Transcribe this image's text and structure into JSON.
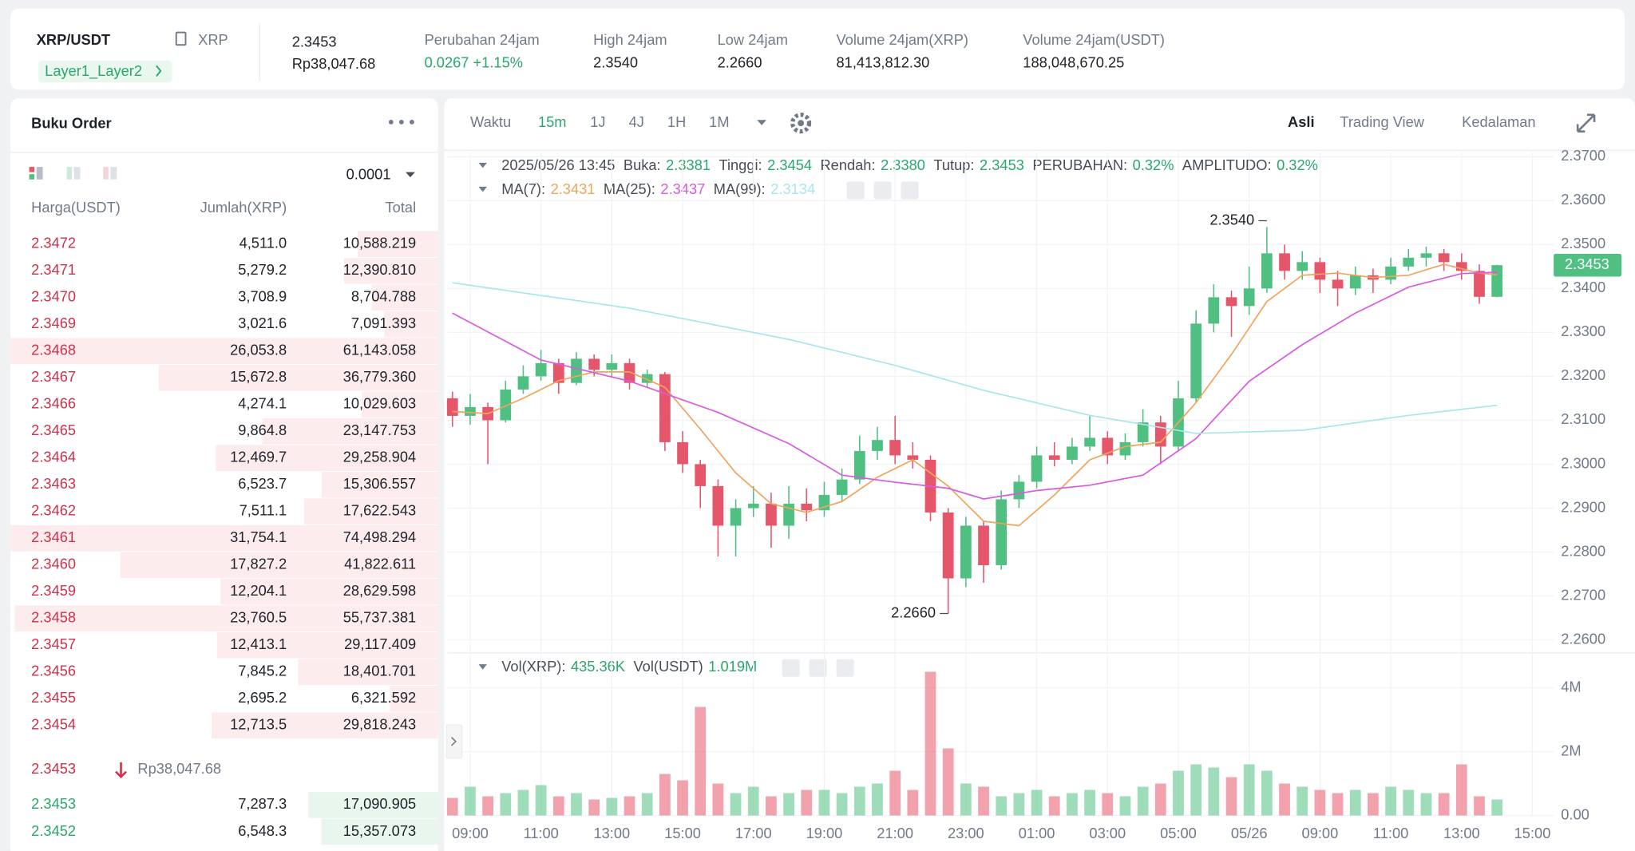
{
  "header": {
    "pair": "XRP/USDT",
    "base": "XRP",
    "tag": "Layer1_Layer2",
    "price": "2.3453",
    "price_idr": "Rp38,047.68",
    "stats": [
      {
        "label": "Perubahan 24jam",
        "value": "0.0267 +1.15%",
        "color": "#2aa76b"
      },
      {
        "label": "High 24jam",
        "value": "2.3540"
      },
      {
        "label": "Low 24jam",
        "value": "2.2660"
      },
      {
        "label": "Volume 24jam(XRP)",
        "value": "81,413,812.30"
      },
      {
        "label": "Volume 24jam(USDT)",
        "value": "188,048,670.25"
      }
    ]
  },
  "order_book": {
    "title": "Buku Order",
    "precision": "0.0001",
    "columns": [
      "Harga(USDT)",
      "Jumlah(XRP)",
      "Total"
    ],
    "asks": [
      [
        "2.3472",
        "4,511.0",
        "10,588.219"
      ],
      [
        "2.3471",
        "5,279.2",
        "12,390.810"
      ],
      [
        "2.3470",
        "3,708.9",
        "8,704.788"
      ],
      [
        "2.3469",
        "3,021.6",
        "7,091.393"
      ],
      [
        "2.3468",
        "26,053.8",
        "61,143.058"
      ],
      [
        "2.3467",
        "15,672.8",
        "36,779.360"
      ],
      [
        "2.3466",
        "4,274.1",
        "10,029.603"
      ],
      [
        "2.3465",
        "9,864.8",
        "23,147.753"
      ],
      [
        "2.3464",
        "12,469.7",
        "29,258.904"
      ],
      [
        "2.3463",
        "6,523.7",
        "15,306.557"
      ],
      [
        "2.3462",
        "7,511.1",
        "17,622.543"
      ],
      [
        "2.3461",
        "31,754.1",
        "74,498.294"
      ],
      [
        "2.3460",
        "17,827.2",
        "41,822.611"
      ],
      [
        "2.3459",
        "12,204.1",
        "28,629.598"
      ],
      [
        "2.3458",
        "23,760.5",
        "55,737.381"
      ],
      [
        "2.3457",
        "12,413.1",
        "29,117.409"
      ],
      [
        "2.3456",
        "7,845.2",
        "18,401.701"
      ],
      [
        "2.3455",
        "2,695.2",
        "6,321.592"
      ],
      [
        "2.3454",
        "12,713.5",
        "29,818.243"
      ]
    ],
    "last_price": "2.3453",
    "last_price_idr": "Rp38,047.68",
    "bids": [
      [
        "2.3453",
        "7,287.3",
        "17,090.905"
      ],
      [
        "2.3452",
        "6,548.3",
        "15,357.073"
      ]
    ]
  },
  "toolbar": {
    "label": "Waktu",
    "intervals": [
      "15m",
      "1J",
      "4J",
      "1H",
      "1M"
    ],
    "active": 0,
    "views": [
      "Asli",
      "Trading View",
      "Kedalaman"
    ],
    "active_view": 0
  },
  "chart_data": {
    "type": "candlestick",
    "date": "2025/05/26 13:45",
    "info": [
      {
        "label": "Buka:",
        "value": "2.3381"
      },
      {
        "label": "Tinggi:",
        "value": "2.3454"
      },
      {
        "label": "Rendah:",
        "value": "2.3380"
      },
      {
        "label": "Tutup:",
        "value": "2.3453"
      },
      {
        "label": "PERUBAHAN:",
        "value": "0.32%"
      },
      {
        "label": "AMPLITUDO:",
        "value": "0.32%"
      }
    ],
    "up_color": "#4fbf82",
    "down_color": "#e5566a",
    "candles": [
      [
        2.315,
        2.3165,
        2.3085,
        2.311
      ],
      [
        2.311,
        2.316,
        2.309,
        2.313
      ],
      [
        2.313,
        2.314,
        2.3,
        2.31
      ],
      [
        2.31,
        2.319,
        2.3095,
        2.317
      ],
      [
        2.317,
        2.3225,
        2.316,
        2.32
      ],
      [
        2.32,
        2.326,
        2.319,
        2.323
      ],
      [
        2.323,
        2.324,
        2.316,
        2.3185
      ],
      [
        2.3185,
        2.3255,
        2.318,
        2.324
      ],
      [
        2.324,
        2.325,
        2.32,
        2.3215
      ],
      [
        2.3215,
        2.325,
        2.32,
        2.323
      ],
      [
        2.323,
        2.324,
        2.317,
        2.3185
      ],
      [
        2.3185,
        2.3215,
        2.3175,
        2.3205
      ],
      [
        2.3205,
        2.321,
        2.303,
        2.305
      ],
      [
        2.305,
        2.3075,
        2.298,
        2.3
      ],
      [
        2.3,
        2.301,
        2.29,
        2.295
      ],
      [
        2.295,
        2.2965,
        2.279,
        2.286
      ],
      [
        2.286,
        2.292,
        2.279,
        2.29
      ],
      [
        2.29,
        2.295,
        2.288,
        2.291
      ],
      [
        2.291,
        2.2935,
        2.281,
        2.286
      ],
      [
        2.286,
        2.295,
        2.283,
        2.291
      ],
      [
        2.291,
        2.2945,
        2.287,
        2.2895
      ],
      [
        2.2895,
        2.296,
        2.288,
        2.293
      ],
      [
        2.293,
        2.299,
        2.2915,
        2.2965
      ],
      [
        2.2965,
        2.3065,
        2.2955,
        2.303
      ],
      [
        2.303,
        2.3085,
        2.301,
        2.3055
      ],
      [
        2.3055,
        2.311,
        2.3,
        2.302
      ],
      [
        2.302,
        2.305,
        2.299,
        2.301
      ],
      [
        2.301,
        2.302,
        2.287,
        2.289
      ],
      [
        2.289,
        2.29,
        2.266,
        2.274
      ],
      [
        2.274,
        2.288,
        2.272,
        2.286
      ],
      [
        2.286,
        2.287,
        2.273,
        2.277
      ],
      [
        2.277,
        2.294,
        2.276,
        2.292
      ],
      [
        2.292,
        2.2975,
        2.29,
        2.296
      ],
      [
        2.296,
        2.304,
        2.2945,
        2.302
      ],
      [
        2.302,
        2.305,
        2.2995,
        2.301
      ],
      [
        2.301,
        2.306,
        2.3,
        2.304
      ],
      [
        2.304,
        2.311,
        2.303,
        2.306
      ],
      [
        2.306,
        2.3075,
        2.3,
        2.302
      ],
      [
        2.302,
        2.307,
        2.301,
        2.305
      ],
      [
        2.305,
        2.3125,
        2.304,
        2.3095
      ],
      [
        2.3095,
        2.311,
        2.3,
        2.304
      ],
      [
        2.304,
        2.319,
        2.303,
        2.315
      ],
      [
        2.315,
        2.335,
        2.314,
        2.332
      ],
      [
        2.332,
        2.341,
        2.33,
        2.338
      ],
      [
        2.338,
        2.3395,
        2.329,
        2.336
      ],
      [
        2.336,
        2.345,
        2.334,
        2.34
      ],
      [
        2.34,
        2.354,
        2.339,
        2.348
      ],
      [
        2.348,
        2.35,
        2.342,
        2.344
      ],
      [
        2.344,
        2.3485,
        2.342,
        2.346
      ],
      [
        2.346,
        2.347,
        2.339,
        2.342
      ],
      [
        2.342,
        2.344,
        2.336,
        2.34
      ],
      [
        2.34,
        2.345,
        2.3385,
        2.343
      ],
      [
        2.343,
        2.3445,
        2.339,
        2.342
      ],
      [
        2.342,
        2.347,
        2.341,
        2.345
      ],
      [
        2.345,
        2.349,
        2.344,
        2.347
      ],
      [
        2.347,
        2.3495,
        2.345,
        2.348
      ],
      [
        2.348,
        2.349,
        2.344,
        2.346
      ],
      [
        2.346,
        2.348,
        2.342,
        2.344
      ],
      [
        2.344,
        2.3455,
        2.3365,
        2.3381
      ],
      [
        2.3381,
        2.3454,
        2.338,
        2.3453
      ]
    ],
    "xlim": [
      -0.29,
      62.2
    ],
    "xticks": [
      {
        "value": 1,
        "label": "09:00"
      },
      {
        "value": 5,
        "label": "11:00"
      },
      {
        "value": 9,
        "label": "13:00"
      },
      {
        "value": 13,
        "label": "15:00"
      },
      {
        "value": 17,
        "label": "17:00"
      },
      {
        "value": 21,
        "label": "19:00"
      },
      {
        "value": 25,
        "label": "21:00"
      },
      {
        "value": 29,
        "label": "23:00"
      },
      {
        "value": 33,
        "label": "01:00"
      },
      {
        "value": 37,
        "label": "03:00"
      },
      {
        "value": 41,
        "label": "05:00"
      },
      {
        "value": 45,
        "label": "05/26"
      },
      {
        "value": 49,
        "label": "09:00"
      },
      {
        "value": 53,
        "label": "11:00"
      },
      {
        "value": 57,
        "label": "13:00"
      },
      {
        "value": 61,
        "label": "15:00"
      }
    ],
    "ylim": [
      2.258,
      2.371
    ],
    "yticks": [
      {
        "value": 2.37,
        "label": "2.3700"
      },
      {
        "value": 2.36,
        "label": "2.3600"
      },
      {
        "value": 2.35,
        "label": "2.3500"
      },
      {
        "value": 2.34,
        "label": "2.3400"
      },
      {
        "value": 2.33,
        "label": "2.3300"
      },
      {
        "value": 2.32,
        "label": "2.3200"
      },
      {
        "value": 2.31,
        "label": "2.3100"
      },
      {
        "value": 2.3,
        "label": "2.3000"
      },
      {
        "value": 2.29,
        "label": "2.2900"
      },
      {
        "value": 2.28,
        "label": "2.2800"
      },
      {
        "value": 2.27,
        "label": "2.2700"
      },
      {
        "value": 2.26,
        "label": "2.2600"
      }
    ],
    "grid": true,
    "series": [
      {
        "name": "MA(7):",
        "legend_value": "2.3431",
        "color": "#f0a45b",
        "x": [
          0,
          2,
          4,
          6,
          8,
          10,
          12,
          14,
          16,
          18,
          20,
          22,
          24,
          26,
          28,
          30,
          32,
          34,
          36,
          38,
          40,
          42,
          44,
          46,
          48,
          50,
          52,
          54,
          56,
          58,
          59
        ],
        "values": [
          2.312,
          2.3115,
          2.315,
          2.319,
          2.321,
          2.321,
          2.3175,
          2.308,
          2.298,
          2.291,
          2.289,
          2.2915,
          2.297,
          2.301,
          2.295,
          2.287,
          2.286,
          2.293,
          2.301,
          2.304,
          2.305,
          2.314,
          2.325,
          2.337,
          2.343,
          2.3435,
          2.3425,
          2.343,
          2.3455,
          2.3435,
          2.3431
        ]
      },
      {
        "name": "MA(25):",
        "legend_value": "2.3437",
        "color": "#d85ae0",
        "x": [
          0,
          5,
          10,
          15,
          19,
          22,
          25,
          28,
          30,
          33,
          36,
          39,
          42,
          45,
          48,
          51,
          54,
          57,
          59
        ],
        "values": [
          2.3344,
          2.3237,
          2.3189,
          2.3118,
          2.3047,
          2.2975,
          2.2959,
          2.2945,
          2.2921,
          2.294,
          2.2952,
          2.2975,
          2.3058,
          2.3189,
          2.3272,
          2.3344,
          2.3403,
          2.3434,
          2.3437
        ]
      },
      {
        "name": "MA(99):",
        "legend_value": "2.3134",
        "color": "#a8e6ee",
        "x": [
          0,
          10,
          19,
          25,
          30,
          36,
          42,
          48,
          54,
          59
        ],
        "values": [
          2.3413,
          2.3355,
          2.3284,
          2.3225,
          2.3168,
          2.3111,
          2.307,
          2.3077,
          2.3111,
          2.3134
        ]
      }
    ],
    "high_label": {
      "value": 2.354,
      "label": "2.3540",
      "candle": 46
    },
    "low_label": {
      "value": 2.266,
      "label": "2.2660",
      "candle": 28
    },
    "current_price": {
      "value": 2.3453,
      "label": "2.3453"
    },
    "volume": {
      "legend": [
        {
          "label": "Vol(XRP):",
          "value": "435.36K"
        },
        {
          "label": "Vol(USDT)",
          "value": "1.019M"
        }
      ],
      "values": [
        0.55,
        0.9,
        0.6,
        0.7,
        0.8,
        0.95,
        0.6,
        0.7,
        0.5,
        0.55,
        0.6,
        0.7,
        1.3,
        1.1,
        3.4,
        1.0,
        0.7,
        0.9,
        0.6,
        0.7,
        0.8,
        0.8,
        0.7,
        0.9,
        1.0,
        1.4,
        0.8,
        4.5,
        2.1,
        1.0,
        0.9,
        0.6,
        0.7,
        0.8,
        0.6,
        0.7,
        0.8,
        0.7,
        0.6,
        0.9,
        1.0,
        1.4,
        1.6,
        1.5,
        1.2,
        1.6,
        1.4,
        1.0,
        0.9,
        0.8,
        0.7,
        0.8,
        0.7,
        0.9,
        0.8,
        0.7,
        0.7,
        1.6,
        0.6,
        0.5
      ],
      "ylim": [
        0,
        4.8
      ],
      "yticks": [
        {
          "value": 4,
          "label": "4M"
        },
        {
          "value": 2,
          "label": "2M"
        },
        {
          "value": 0,
          "label": "0.00"
        }
      ]
    }
  }
}
